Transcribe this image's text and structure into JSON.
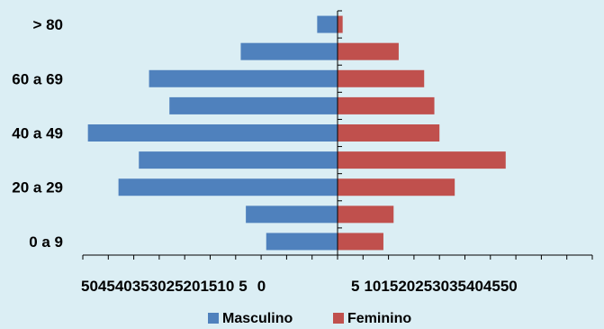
{
  "chart_data": {
    "type": "bar",
    "orientation": "horizontal",
    "layout": "population-pyramid",
    "categories": [
      "0 a 9",
      "",
      "20 a 29",
      "",
      "40 a 49",
      "",
      "60 a 69",
      "",
      "> 80"
    ],
    "series": [
      {
        "name": "Masculino",
        "color": "#4f81bd",
        "values": [
          14,
          18,
          43,
          39,
          49,
          33,
          37,
          19,
          4
        ]
      },
      {
        "name": "Feminino",
        "color": "#c0504d",
        "values": [
          9,
          11,
          23,
          33,
          20,
          19,
          17,
          12,
          1
        ]
      }
    ],
    "x_ticks_left": [
      "50",
      "45",
      "40",
      "35",
      "30",
      "25",
      "20",
      "15",
      "10",
      "5",
      "0"
    ],
    "x_ticks_right": [
      "5",
      "10",
      "15",
      "20",
      "25",
      "30",
      "35",
      "40",
      "45",
      "50"
    ],
    "xlim": [
      -50,
      50
    ],
    "legend": {
      "position": "bottom"
    },
    "grid": false
  },
  "colors": {
    "background": "#dbeef4",
    "axis": "#000000"
  }
}
